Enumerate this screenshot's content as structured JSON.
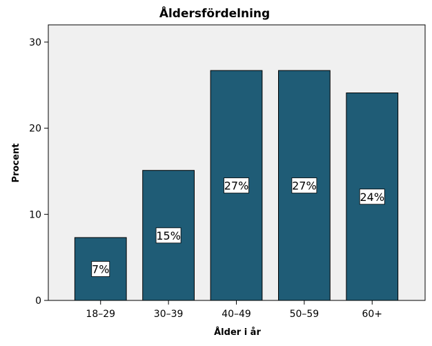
{
  "chart_data": {
    "type": "bar",
    "title": "Åldersfördelning",
    "xlabel": "Ålder i år",
    "ylabel": "Procent",
    "categories": [
      "18–29",
      "30–39",
      "40–49",
      "50–59",
      "60+"
    ],
    "values": [
      7.3,
      15.1,
      26.7,
      26.7,
      24.1
    ],
    "data_labels": [
      "7%",
      "15%",
      "27%",
      "27%",
      "24%"
    ],
    "ylim": [
      0,
      32
    ],
    "yticks": [
      0,
      10,
      20,
      30
    ],
    "grid": false,
    "colors": {
      "bar": "#1f5c76",
      "plot_background": "#f0f0f0",
      "axis": "#000000"
    }
  }
}
